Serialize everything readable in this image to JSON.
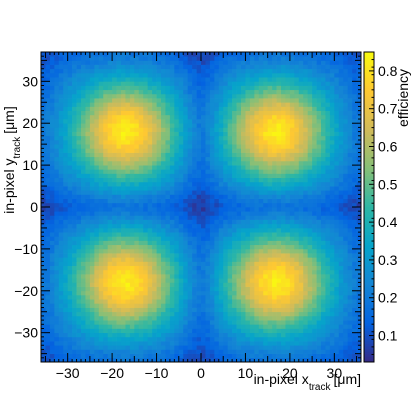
{
  "chart_data": {
    "type": "heatmap",
    "title": "",
    "xlabel": "in-pixel x",
    "xlabel_sub": "track",
    "xlabel_unit": "[μm]",
    "ylabel": "in-pixel y",
    "ylabel_sub": "track",
    "ylabel_unit": "[μm]",
    "zlabel": "efficiency",
    "xlim": [
      -36,
      36
    ],
    "ylim": [
      -37,
      37
    ],
    "zlim": [
      0.03,
      0.85
    ],
    "xticks": [
      -30,
      -20,
      -10,
      0,
      10,
      20,
      30
    ],
    "yticks": [
      -30,
      -20,
      -10,
      0,
      10,
      20,
      30
    ],
    "zticks": [
      0.1,
      0.2,
      0.3,
      0.4,
      0.5,
      0.6,
      0.7,
      0.8
    ],
    "grid": false,
    "colormap": "parula",
    "bins": {
      "nx": 72,
      "ny": 74
    },
    "description_of_values": "four efficiency maxima near (±17, ±18) μm",
    "maxima": [
      {
        "x": -17,
        "y": 18,
        "value": 0.82
      },
      {
        "x": 17,
        "y": 18,
        "value": 0.82
      },
      {
        "x": -17,
        "y": -18,
        "value": 0.82
      },
      {
        "x": 17,
        "y": -18,
        "value": 0.82
      }
    ],
    "minimum_value": 0.05
  }
}
